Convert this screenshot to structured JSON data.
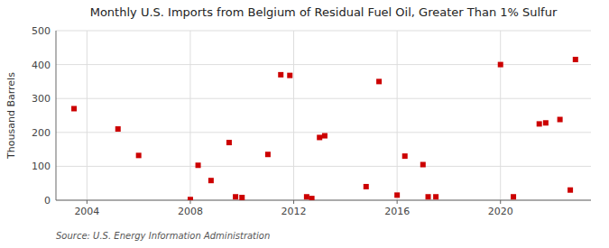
{
  "chart_data": {
    "type": "scatter",
    "title": "Monthly U.S. Imports from Belgium of Residual Fuel Oil, Greater Than 1% Sulfur",
    "y_label": "Thousand Barrels",
    "annotations": [
      "Source: U.S. Energy Information Administration"
    ],
    "color": "#cc0000",
    "marker": "square",
    "grid": true,
    "xlim": [
      2002.8,
      2023.5
    ],
    "ylim": [
      0,
      500
    ],
    "xticks": [
      2004,
      2008,
      2012,
      2016,
      2020
    ],
    "yticks": [
      0,
      100,
      200,
      300,
      400,
      500
    ],
    "x": [
      2003.5,
      2005.2,
      2006.0,
      2008.0,
      2008.3,
      2008.8,
      2009.5,
      2009.75,
      2010.0,
      2011.0,
      2011.5,
      2011.85,
      2012.5,
      2012.7,
      2013.0,
      2013.2,
      2014.8,
      2015.3,
      2016.0,
      2016.3,
      2017.0,
      2017.2,
      2017.5,
      2020.0,
      2020.5,
      2021.5,
      2021.75,
      2022.3,
      2022.7,
      2022.9
    ],
    "values": [
      270,
      210,
      132,
      2,
      103,
      58,
      170,
      10,
      8,
      135,
      370,
      368,
      10,
      5,
      185,
      190,
      40,
      350,
      15,
      130,
      105,
      10,
      10,
      400,
      10,
      225,
      228,
      238,
      30,
      415
    ]
  }
}
